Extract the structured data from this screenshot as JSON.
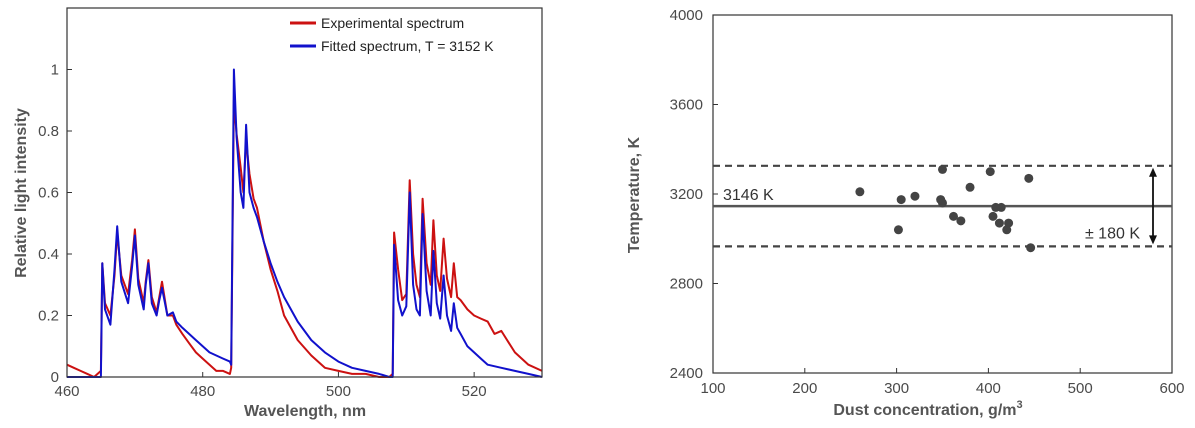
{
  "chart_data": [
    {
      "type": "line",
      "xlabel": "Wavelength, nm",
      "ylabel": "Relative light intensity",
      "xlim": [
        460,
        530
      ],
      "ylim": [
        0,
        1.2
      ],
      "xticks": [
        "460",
        "480",
        "500",
        "520"
      ],
      "yticks": [
        "0",
        "0.2",
        "0.4",
        "0.6",
        "0.8",
        "1"
      ],
      "legend_position": "top-right",
      "grid": false,
      "series": [
        {
          "name": "Experimental spectrum",
          "color": "#cc1111",
          "x": [
            460,
            461,
            462,
            463,
            464,
            465,
            465.2,
            465.6,
            466.4,
            467,
            467.4,
            468,
            469,
            469.6,
            470,
            470.5,
            471.3,
            471.6,
            472,
            472.5,
            473.2,
            473.6,
            474,
            474.8,
            475.6,
            476.1,
            477,
            478,
            479,
            480,
            481,
            482,
            483,
            484,
            484.2,
            484.6,
            485,
            485.6,
            486,
            486.4,
            486.9,
            487.5,
            488,
            489,
            490,
            491,
            492,
            494,
            496,
            498,
            500,
            502,
            504,
            506,
            507.5,
            508,
            508.2,
            508.8,
            509.4,
            510,
            510.5,
            511,
            511.5,
            512,
            512.4,
            513,
            513.6,
            514,
            514.5,
            515,
            515.5,
            516,
            516.6,
            517,
            517.5,
            518,
            519,
            520,
            521,
            522,
            523,
            524,
            526,
            528,
            530
          ],
          "y": [
            0.04,
            0.03,
            0.02,
            0.01,
            0.0,
            0.02,
            0.37,
            0.24,
            0.2,
            0.33,
            0.47,
            0.33,
            0.27,
            0.38,
            0.48,
            0.32,
            0.24,
            0.31,
            0.38,
            0.26,
            0.21,
            0.26,
            0.31,
            0.2,
            0.2,
            0.17,
            0.14,
            0.11,
            0.08,
            0.06,
            0.04,
            0.02,
            0.02,
            0.01,
            0.03,
            0.9,
            0.79,
            0.68,
            0.6,
            0.77,
            0.66,
            0.58,
            0.55,
            0.44,
            0.35,
            0.28,
            0.2,
            0.12,
            0.07,
            0.03,
            0.02,
            0.01,
            0.01,
            0.0,
            0.0,
            0.01,
            0.47,
            0.35,
            0.25,
            0.27,
            0.64,
            0.4,
            0.3,
            0.26,
            0.58,
            0.37,
            0.3,
            0.51,
            0.33,
            0.28,
            0.45,
            0.32,
            0.26,
            0.37,
            0.26,
            0.25,
            0.22,
            0.2,
            0.19,
            0.18,
            0.14,
            0.15,
            0.08,
            0.04,
            0.02
          ]
        },
        {
          "name": "Fitted spectrum, T = 3152 K",
          "color": "#1111cc",
          "x": [
            460,
            462,
            464,
            465,
            465.2,
            465.6,
            466.4,
            467,
            467.4,
            468,
            469,
            469.6,
            470,
            470.5,
            471.3,
            471.6,
            472,
            472.5,
            473.2,
            473.6,
            474,
            474.8,
            475.6,
            476.1,
            477,
            478,
            479,
            480,
            481,
            482,
            483,
            484,
            484.2,
            484.6,
            485,
            485.6,
            486,
            486.4,
            486.9,
            487.5,
            488,
            489,
            490,
            491,
            492,
            494,
            496,
            498,
            500,
            502,
            504,
            506,
            507.5,
            508,
            508.2,
            508.8,
            509.4,
            510,
            510.5,
            511,
            511.5,
            512,
            512.4,
            513,
            513.6,
            514,
            514.5,
            515,
            515.5,
            516,
            516.6,
            517,
            517.5,
            518,
            519,
            520,
            521,
            522,
            524,
            526,
            528,
            530
          ],
          "y": [
            0.0,
            0.0,
            0.0,
            0.0,
            0.37,
            0.22,
            0.17,
            0.35,
            0.49,
            0.31,
            0.24,
            0.36,
            0.46,
            0.3,
            0.22,
            0.3,
            0.37,
            0.24,
            0.2,
            0.25,
            0.29,
            0.2,
            0.21,
            0.18,
            0.16,
            0.14,
            0.12,
            0.1,
            0.08,
            0.07,
            0.06,
            0.05,
            0.04,
            1.0,
            0.78,
            0.6,
            0.55,
            0.82,
            0.6,
            0.55,
            0.52,
            0.44,
            0.37,
            0.31,
            0.26,
            0.18,
            0.12,
            0.08,
            0.05,
            0.03,
            0.02,
            0.01,
            0.0,
            0.0,
            0.43,
            0.25,
            0.2,
            0.23,
            0.6,
            0.3,
            0.22,
            0.2,
            0.53,
            0.28,
            0.2,
            0.41,
            0.24,
            0.19,
            0.33,
            0.2,
            0.15,
            0.24,
            0.16,
            0.14,
            0.1,
            0.08,
            0.06,
            0.04,
            0.03,
            0.02,
            0.01,
            0.0
          ]
        }
      ]
    },
    {
      "type": "scatter",
      "xlabel": "Dust concentration, g/m",
      "xlabel_superscript": "3",
      "ylabel": "Temperature, K",
      "xlim": [
        100,
        600
      ],
      "ylim": [
        2400,
        4000
      ],
      "xticks": [
        "100",
        "200",
        "300",
        "400",
        "500",
        "600"
      ],
      "yticks": [
        "2400",
        "2800",
        "3200",
        "3600",
        "4000"
      ],
      "grid": false,
      "points": {
        "x": [
          260,
          302,
          305,
          320,
          348,
          350,
          350,
          362,
          370,
          380,
          402,
          405,
          408,
          412,
          414,
          420,
          422,
          444,
          446
        ],
        "y": [
          3210,
          3040,
          3175,
          3190,
          3175,
          3160,
          3310,
          3100,
          3080,
          3230,
          3300,
          3100,
          3140,
          3070,
          3140,
          3040,
          3070,
          3270,
          2960
        ],
        "color": "#444444"
      },
      "mean_line": {
        "value": 3146,
        "label": "3146 K"
      },
      "band": {
        "lower": 2966,
        "upper": 3326,
        "label": "± 180 K"
      }
    }
  ]
}
